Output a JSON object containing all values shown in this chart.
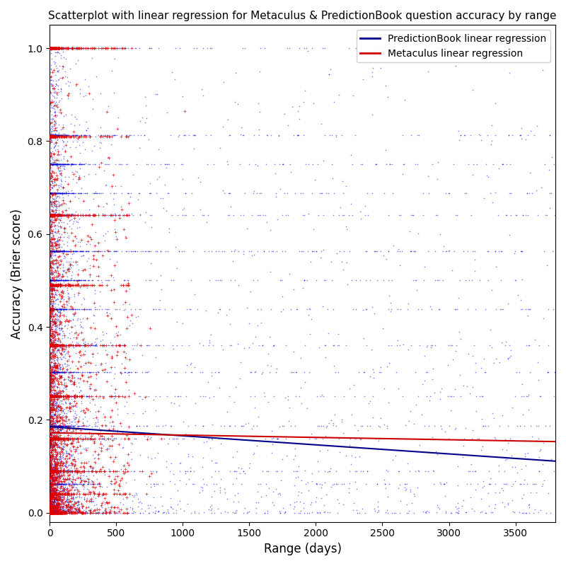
{
  "title": "Scatterplot with linear regression for Metaculus & PredictionBook question accuracy by range",
  "xlabel": "Range (days)",
  "ylabel": "Accuracy (Brier score)",
  "xlim": [
    0,
    3800
  ],
  "ylim": [
    -0.02,
    1.05
  ],
  "pb_color": "#0000dd",
  "meta_color": "#dd0000",
  "pb_reg_color": "#00008B",
  "meta_reg_color": "#cc0000",
  "pb_n": 8000,
  "meta_n": 3000,
  "pb_reg_intercept": 0.185,
  "pb_reg_slope": -1.95e-05,
  "meta_reg_intercept": 0.172,
  "meta_reg_slope": -5e-06,
  "seed": 42,
  "pb_discrete_y": [
    0.0,
    0.0625,
    0.09,
    0.16,
    0.1875,
    0.25,
    0.3025,
    0.36,
    0.4375,
    0.5,
    0.5625,
    0.5625,
    0.64,
    0.6875,
    0.75,
    0.8125,
    1.0
  ],
  "meta_discrete_y": [
    0.0,
    0.04,
    0.09,
    0.16,
    0.25,
    0.36,
    0.49,
    0.64,
    0.81,
    1.0
  ]
}
